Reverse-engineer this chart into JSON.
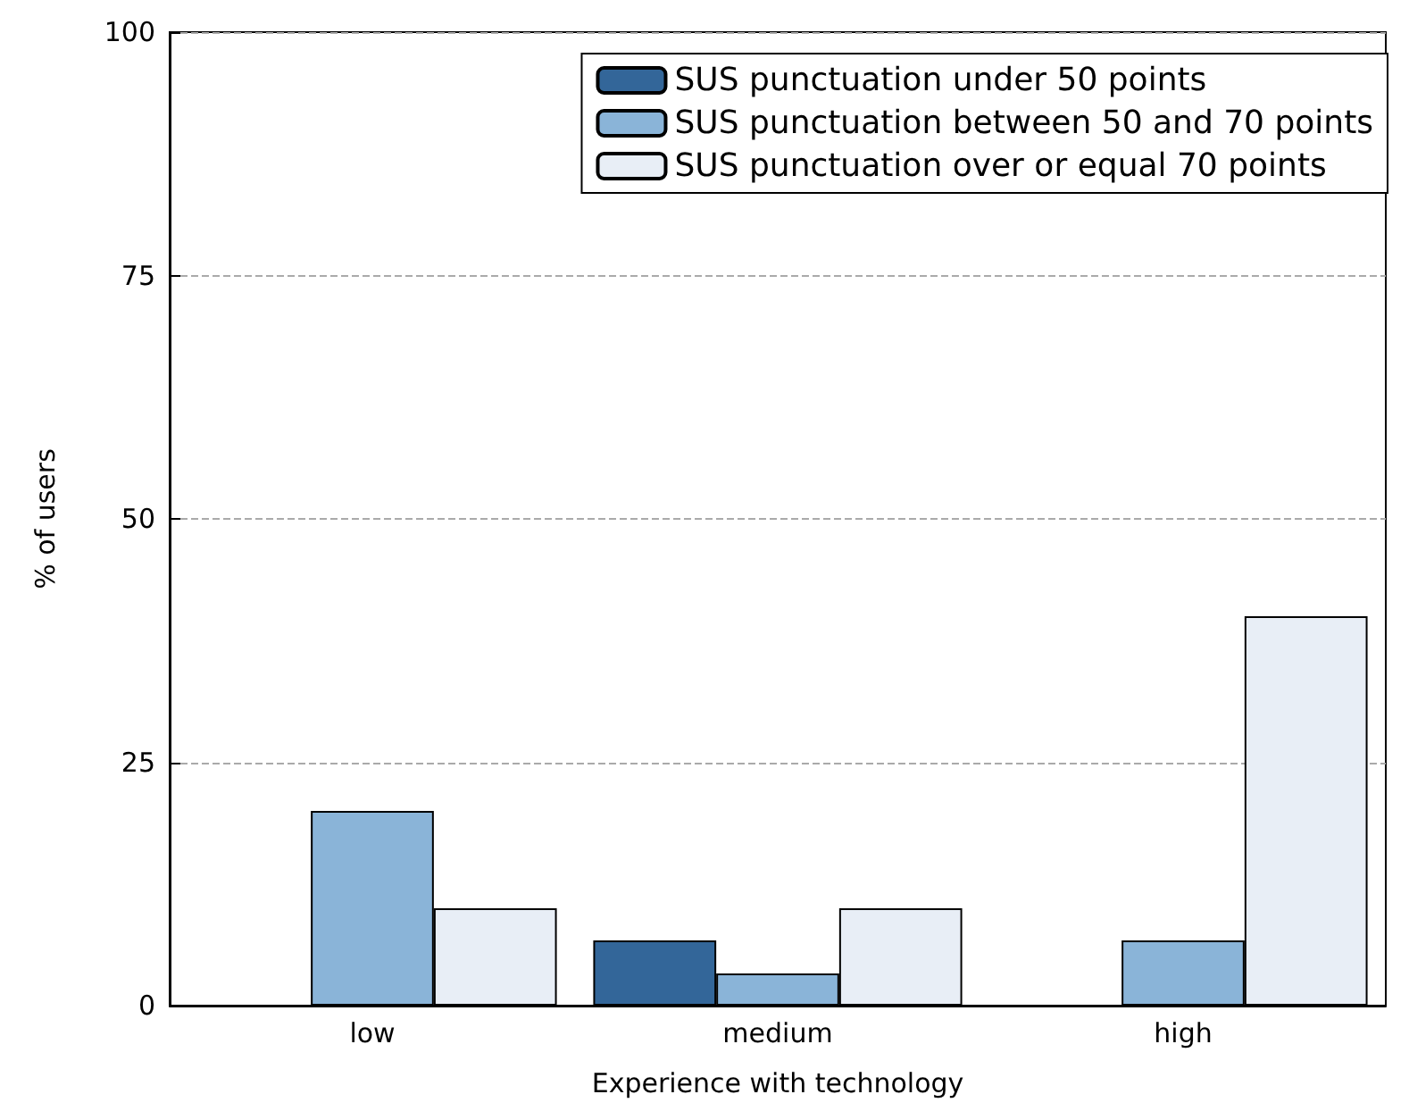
{
  "chart_data": {
    "type": "bar",
    "xlabel": "Experience with technology",
    "ylabel": "% of users",
    "categories": [
      "low",
      "medium",
      "high"
    ],
    "series": [
      {
        "name": "SUS punctuation under 50 points",
        "color": "#336699",
        "values": [
          0,
          6.7,
          0
        ]
      },
      {
        "name": "SUS punctuation between 50 and 70 points",
        "color": "#8ab4d8",
        "values": [
          20,
          3.3,
          6.7
        ]
      },
      {
        "name": "SUS punctuation over or equal 70 points",
        "color": "#e8eef6",
        "values": [
          10,
          10,
          40
        ]
      }
    ],
    "ylim": [
      0,
      100
    ],
    "yticks": [
      0,
      25,
      50,
      75,
      100
    ],
    "grid": "y",
    "legend": "top right"
  }
}
